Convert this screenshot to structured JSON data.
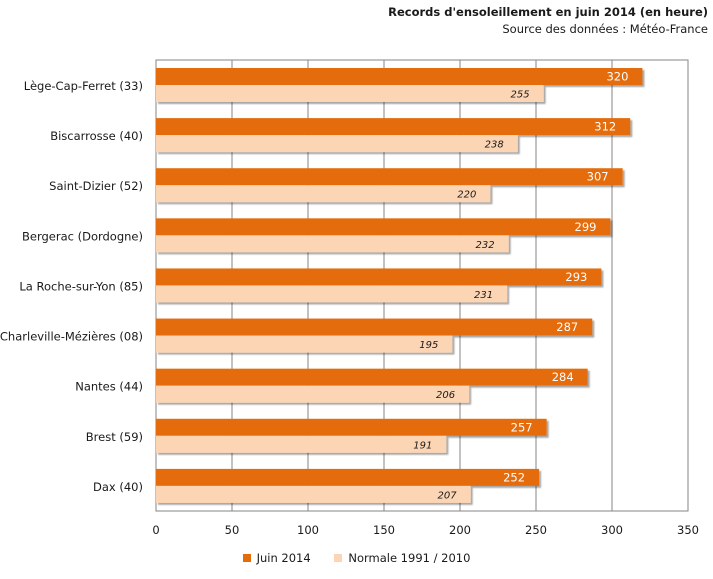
{
  "chart_data": {
    "type": "bar",
    "orientation": "horizontal",
    "title": "Records d'ensoleillement en juin 2014 (en heure)",
    "subtitle": "Source des données : Météo-France",
    "categories": [
      "Lège-Cap-Ferret (33)",
      "Biscarrosse (40)",
      "Saint-Dizier (52)",
      "Bergerac (Dordogne)",
      "La Roche-sur-Yon (85)",
      "Charleville-Mézières (08)",
      "Nantes (44)",
      "Brest (59)",
      "Dax (40)"
    ],
    "series": [
      {
        "name": "Juin 2014",
        "color": "#e46c0a",
        "values": [
          320,
          312,
          307,
          299,
          293,
          287,
          284,
          257,
          252
        ]
      },
      {
        "name": "Normale 1991 / 2010",
        "color": "#fcd5b5",
        "values": [
          255,
          238,
          220,
          232,
          231,
          195,
          206,
          191,
          207
        ]
      }
    ],
    "xlim": [
      0,
      350
    ],
    "xticks": [
      0,
      50,
      100,
      150,
      200,
      250,
      300,
      350
    ],
    "grid": true,
    "legend_position": "bottom"
  }
}
